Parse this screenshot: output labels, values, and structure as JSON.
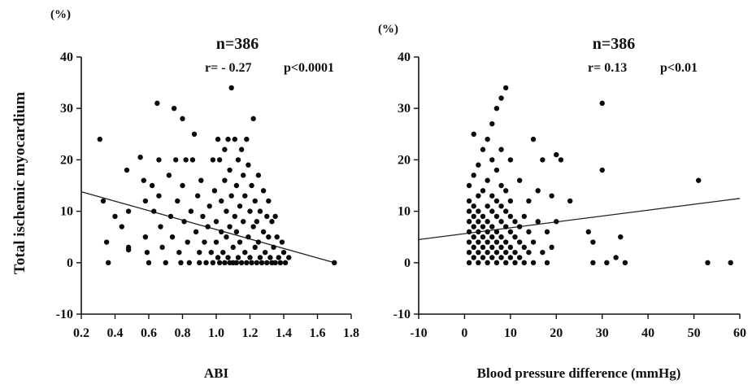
{
  "shared": {
    "ylabel": "Total ischemic myocardium",
    "yunit": "(%)"
  },
  "chart_data": [
    {
      "type": "scatter",
      "xlabel": "ABI",
      "ylabel": "Total ischemic myocardium",
      "yunit": "(%)",
      "n_label": "n=386",
      "r_label": "r= - 0.27",
      "p_label": "p<0.0001",
      "xlim": [
        0.2,
        1.8
      ],
      "ylim": [
        -10,
        40
      ],
      "xticks": [
        "0.2",
        "0.4",
        "0.6",
        "0.8",
        "1.0",
        "1.2",
        "1.4",
        "1.6",
        "1.8"
      ],
      "yticks": [
        "-10",
        "0",
        "10",
        "20",
        "30",
        "40"
      ],
      "regression": {
        "x": [
          0.2,
          1.7
        ],
        "y": [
          13.8,
          0
        ]
      },
      "points": [
        [
          0.31,
          24
        ],
        [
          0.33,
          12
        ],
        [
          0.35,
          4
        ],
        [
          0.36,
          0
        ],
        [
          0.4,
          9
        ],
        [
          0.44,
          7
        ],
        [
          0.47,
          18
        ],
        [
          0.48,
          10
        ],
        [
          0.48,
          3
        ],
        [
          0.48,
          2.5
        ],
        [
          0.55,
          20.5
        ],
        [
          0.57,
          16
        ],
        [
          0.58,
          12
        ],
        [
          0.58,
          5
        ],
        [
          0.59,
          2
        ],
        [
          0.6,
          0
        ],
        [
          0.62,
          15
        ],
        [
          0.63,
          10
        ],
        [
          0.65,
          31
        ],
        [
          0.66,
          20
        ],
        [
          0.66,
          13
        ],
        [
          0.67,
          7
        ],
        [
          0.68,
          3
        ],
        [
          0.7,
          0
        ],
        [
          0.72,
          17
        ],
        [
          0.73,
          9
        ],
        [
          0.74,
          5
        ],
        [
          0.75,
          30
        ],
        [
          0.76,
          20
        ],
        [
          0.77,
          12
        ],
        [
          0.78,
          2
        ],
        [
          0.79,
          0
        ],
        [
          0.8,
          28
        ],
        [
          0.8,
          15
        ],
        [
          0.81,
          8
        ],
        [
          0.82,
          20
        ],
        [
          0.83,
          4
        ],
        [
          0.84,
          0
        ],
        [
          0.85,
          10
        ],
        [
          0.86,
          20
        ],
        [
          0.87,
          25
        ],
        [
          0.88,
          6
        ],
        [
          0.89,
          13
        ],
        [
          0.9,
          2
        ],
        [
          0.9,
          0
        ],
        [
          0.91,
          16
        ],
        [
          0.92,
          9
        ],
        [
          0.93,
          4
        ],
        [
          0.94,
          0
        ],
        [
          0.95,
          7
        ],
        [
          0.96,
          11
        ],
        [
          0.97,
          2
        ],
        [
          0.98,
          20
        ],
        [
          0.98,
          0
        ],
        [
          0.99,
          14
        ],
        [
          1.0,
          8
        ],
        [
          1.0,
          4
        ],
        [
          1.01,
          24
        ],
        [
          1.01,
          1
        ],
        [
          1.02,
          20
        ],
        [
          1.02,
          0
        ],
        [
          1.03,
          12
        ],
        [
          1.03,
          6
        ],
        [
          1.04,
          2
        ],
        [
          1.05,
          22
        ],
        [
          1.05,
          16
        ],
        [
          1.05,
          0
        ],
        [
          1.06,
          10
        ],
        [
          1.06,
          5
        ],
        [
          1.07,
          24
        ],
        [
          1.07,
          1
        ],
        [
          1.08,
          18
        ],
        [
          1.08,
          7
        ],
        [
          1.08,
          0
        ],
        [
          1.09,
          34
        ],
        [
          1.09,
          13
        ],
        [
          1.1,
          3
        ],
        [
          1.1,
          0
        ],
        [
          1.11,
          9
        ],
        [
          1.11,
          24
        ],
        [
          1.12,
          15
        ],
        [
          1.12,
          6
        ],
        [
          1.12,
          0
        ],
        [
          1.13,
          20
        ],
        [
          1.13,
          1
        ],
        [
          1.14,
          11
        ],
        [
          1.14,
          4
        ],
        [
          1.15,
          22
        ],
        [
          1.15,
          0
        ],
        [
          1.16,
          8
        ],
        [
          1.16,
          17
        ],
        [
          1.17,
          2
        ],
        [
          1.17,
          13
        ],
        [
          1.18,
          0
        ],
        [
          1.18,
          24
        ],
        [
          1.19,
          5
        ],
        [
          1.19,
          19
        ],
        [
          1.2,
          10
        ],
        [
          1.2,
          1
        ],
        [
          1.21,
          15
        ],
        [
          1.21,
          0
        ],
        [
          1.22,
          7
        ],
        [
          1.22,
          28
        ],
        [
          1.23,
          3
        ],
        [
          1.23,
          12
        ],
        [
          1.24,
          0
        ],
        [
          1.24,
          8
        ],
        [
          1.25,
          4
        ],
        [
          1.25,
          17
        ],
        [
          1.26,
          1
        ],
        [
          1.26,
          10
        ],
        [
          1.27,
          0
        ],
        [
          1.28,
          6
        ],
        [
          1.28,
          14
        ],
        [
          1.29,
          2
        ],
        [
          1.3,
          9
        ],
        [
          1.3,
          0
        ],
        [
          1.31,
          5
        ],
        [
          1.31,
          12
        ],
        [
          1.32,
          1
        ],
        [
          1.33,
          8
        ],
        [
          1.33,
          0
        ],
        [
          1.34,
          3
        ],
        [
          1.35,
          9
        ],
        [
          1.35,
          0
        ],
        [
          1.36,
          5
        ],
        [
          1.37,
          1
        ],
        [
          1.38,
          0
        ],
        [
          1.39,
          4
        ],
        [
          1.4,
          2
        ],
        [
          1.41,
          0
        ],
        [
          1.43,
          1
        ],
        [
          1.7,
          0
        ]
      ]
    },
    {
      "type": "scatter",
      "xlabel": "Blood  pressure difference (mmHg)",
      "ylabel": "Total ischemic myocardium",
      "yunit": "(%)",
      "n_label": "n=386",
      "r_label": "r= 0.13",
      "p_label": "p<0.01",
      "xlim": [
        -10,
        60
      ],
      "ylim": [
        -10,
        40
      ],
      "xticks": [
        "-10",
        "0",
        "10",
        "20",
        "30",
        "40",
        "50",
        "60"
      ],
      "yticks": [
        "-10",
        "0",
        "10",
        "20",
        "30",
        "40"
      ],
      "regression": {
        "x": [
          -10,
          60
        ],
        "y": [
          4.5,
          12.5
        ]
      },
      "points": [
        [
          1,
          0
        ],
        [
          1,
          2
        ],
        [
          1,
          4
        ],
        [
          1,
          6
        ],
        [
          1,
          8
        ],
        [
          1,
          10
        ],
        [
          1,
          12
        ],
        [
          1,
          15
        ],
        [
          2,
          1
        ],
        [
          2,
          3
        ],
        [
          2,
          5
        ],
        [
          2,
          7
        ],
        [
          2,
          9
        ],
        [
          2,
          11
        ],
        [
          2,
          17
        ],
        [
          2,
          25
        ],
        [
          3,
          0
        ],
        [
          3,
          2
        ],
        [
          3,
          4
        ],
        [
          3,
          6
        ],
        [
          3,
          8
        ],
        [
          3,
          10
        ],
        [
          3,
          13
        ],
        [
          3,
          19
        ],
        [
          4,
          1
        ],
        [
          4,
          3
        ],
        [
          4,
          5
        ],
        [
          4,
          7
        ],
        [
          4,
          9
        ],
        [
          4,
          14
        ],
        [
          4,
          22
        ],
        [
          5,
          0
        ],
        [
          5,
          2
        ],
        [
          5,
          4
        ],
        [
          5,
          6
        ],
        [
          5,
          8
        ],
        [
          5,
          11
        ],
        [
          5,
          16
        ],
        [
          5,
          24
        ],
        [
          6,
          1
        ],
        [
          6,
          3
        ],
        [
          6,
          5
        ],
        [
          6,
          7
        ],
        [
          6,
          10
        ],
        [
          6,
          13
        ],
        [
          6,
          20
        ],
        [
          6,
          27
        ],
        [
          7,
          0
        ],
        [
          7,
          2
        ],
        [
          7,
          4
        ],
        [
          7,
          6
        ],
        [
          7,
          9
        ],
        [
          7,
          12
        ],
        [
          7,
          18
        ],
        [
          7,
          30
        ],
        [
          8,
          1
        ],
        [
          8,
          3
        ],
        [
          8,
          5
        ],
        [
          8,
          8
        ],
        [
          8,
          11
        ],
        [
          8,
          15
        ],
        [
          8,
          22
        ],
        [
          8,
          32
        ],
        [
          9,
          0
        ],
        [
          9,
          2
        ],
        [
          9,
          4
        ],
        [
          9,
          7
        ],
        [
          9,
          10
        ],
        [
          9,
          14
        ],
        [
          9,
          34
        ],
        [
          10,
          1
        ],
        [
          10,
          3
        ],
        [
          10,
          6
        ],
        [
          10,
          9
        ],
        [
          10,
          12
        ],
        [
          10,
          20
        ],
        [
          11,
          0
        ],
        [
          11,
          2
        ],
        [
          11,
          5
        ],
        [
          11,
          8
        ],
        [
          12,
          1
        ],
        [
          12,
          4
        ],
        [
          12,
          7
        ],
        [
          12,
          16
        ],
        [
          13,
          0
        ],
        [
          13,
          3
        ],
        [
          13,
          9
        ],
        [
          14,
          2
        ],
        [
          14,
          6
        ],
        [
          14,
          12
        ],
        [
          15,
          0
        ],
        [
          15,
          24
        ],
        [
          15,
          4
        ],
        [
          16,
          8
        ],
        [
          16,
          14
        ],
        [
          17,
          2
        ],
        [
          17,
          20
        ],
        [
          18,
          0
        ],
        [
          18,
          6
        ],
        [
          19,
          13
        ],
        [
          19,
          3
        ],
        [
          20,
          8
        ],
        [
          20,
          21
        ],
        [
          21,
          20
        ],
        [
          23,
          12
        ],
        [
          27,
          6
        ],
        [
          28,
          0
        ],
        [
          28,
          4
        ],
        [
          30,
          18
        ],
        [
          30,
          31
        ],
        [
          31,
          0
        ],
        [
          33,
          1
        ],
        [
          34,
          5
        ],
        [
          35,
          0
        ],
        [
          51,
          16
        ],
        [
          53,
          0
        ],
        [
          58,
          0
        ]
      ]
    }
  ]
}
